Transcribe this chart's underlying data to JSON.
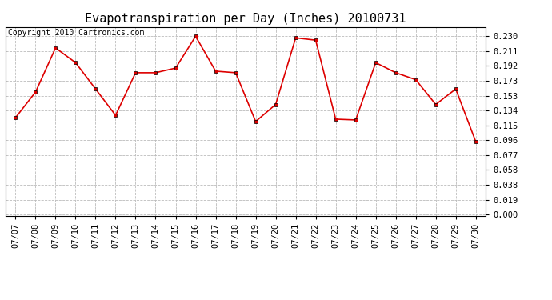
{
  "title": "Evapotranspiration per Day (Inches) 20100731",
  "copyright": "Copyright 2010 Cartronics.com",
  "dates": [
    "07/07",
    "07/08",
    "07/09",
    "07/10",
    "07/11",
    "07/12",
    "07/13",
    "07/14",
    "07/15",
    "07/16",
    "07/17",
    "07/18",
    "07/19",
    "07/20",
    "07/21",
    "07/22",
    "07/23",
    "07/24",
    "07/25",
    "07/26",
    "07/27",
    "07/28",
    "07/29",
    "07/30"
  ],
  "values": [
    0.125,
    0.158,
    0.215,
    0.196,
    0.162,
    0.128,
    0.183,
    0.183,
    0.189,
    0.23,
    0.185,
    0.183,
    0.12,
    0.142,
    0.228,
    0.225,
    0.123,
    0.122,
    0.196,
    0.183,
    0.174,
    0.142,
    0.162,
    0.094
  ],
  "line_color": "#dd0000",
  "marker": "s",
  "marker_size": 3,
  "bg_color": "#ffffff",
  "grid_color": "#bbbbbb",
  "yticks": [
    0.0,
    0.019,
    0.038,
    0.058,
    0.077,
    0.096,
    0.115,
    0.134,
    0.153,
    0.173,
    0.192,
    0.211,
    0.23
  ],
  "ylim": [
    -0.002,
    0.242
  ],
  "title_fontsize": 11,
  "tick_fontsize": 7.5,
  "copyright_fontsize": 7
}
